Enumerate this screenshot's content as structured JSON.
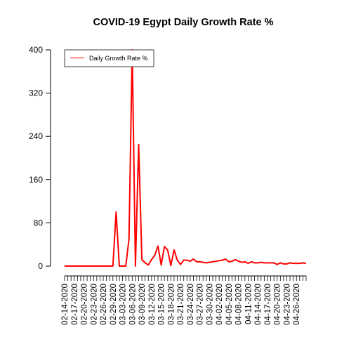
{
  "chart_data": {
    "type": "line",
    "title": "COVID-19 Egypt Daily Growth Rate %",
    "xlabel": "",
    "ylabel": "",
    "ylim": [
      0,
      400
    ],
    "y_ticks": [
      "0",
      "80",
      "160",
      "240",
      "320",
      "400"
    ],
    "x_tick_labels": [
      "02-14-2020",
      "02-17-2020",
      "02-20-2020",
      "02-23-2020",
      "02-26-2020",
      "02-29-2020",
      "03-03-2020",
      "03-06-2020",
      "03-09-2020",
      "03-12-2020",
      "03-15-2020",
      "03-18-2020",
      "03-21-2020",
      "03-24-2020",
      "03-27-2020",
      "03-30-2020",
      "04-02-2020",
      "04-05-2020",
      "04-08-2020",
      "04-11-2020",
      "04-14-2020",
      "04-17-2020",
      "04-20-2020",
      "04-23-2020",
      "04-26-2020"
    ],
    "grid": false,
    "legend_position": "top-left",
    "colors": {
      "series": "#ff0000",
      "axis": "#000000"
    },
    "series": [
      {
        "name": "Daily Growth Rate %",
        "start_date": "02-14-2020",
        "values": [
          0,
          0,
          0,
          0,
          0,
          0,
          0,
          0,
          0,
          0,
          0,
          0,
          0,
          0,
          0,
          0,
          100,
          0,
          0,
          0,
          50,
          400,
          0,
          225,
          12,
          6,
          2,
          12,
          20,
          37,
          2,
          36,
          30,
          1,
          30,
          11,
          3,
          11,
          11,
          9,
          13,
          8,
          8,
          7,
          6,
          7,
          8,
          9,
          10,
          11,
          13,
          8,
          9,
          12,
          9,
          7,
          8,
          5,
          8,
          6,
          6,
          7,
          6,
          6,
          6,
          6,
          3,
          6,
          4,
          4,
          6,
          5,
          5,
          5,
          6,
          5
        ]
      }
    ]
  }
}
